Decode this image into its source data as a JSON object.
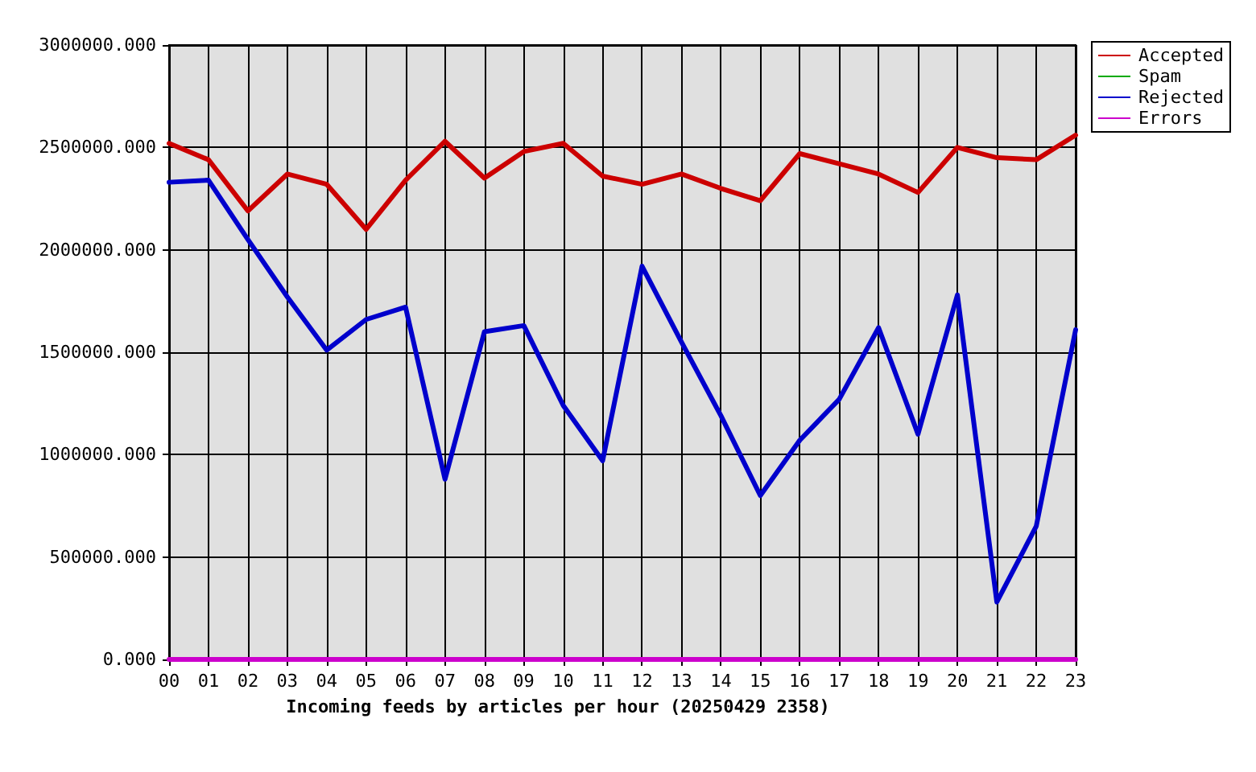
{
  "chart_data": {
    "type": "line",
    "xlabel": "Incoming feeds by articles per hour (20250429 2358)",
    "categories": [
      "00",
      "01",
      "02",
      "03",
      "04",
      "05",
      "06",
      "07",
      "08",
      "09",
      "10",
      "11",
      "12",
      "13",
      "14",
      "15",
      "16",
      "17",
      "18",
      "19",
      "20",
      "21",
      "22",
      "23"
    ],
    "series": [
      {
        "name": "Accepted",
        "color": "#cc0000",
        "values": [
          2520000,
          2440000,
          2190000,
          2370000,
          2320000,
          2100000,
          2340000,
          2530000,
          2350000,
          2480000,
          2520000,
          2360000,
          2320000,
          2370000,
          2300000,
          2240000,
          2470000,
          2420000,
          2370000,
          2280000,
          2500000,
          2450000,
          2440000,
          2560000
        ]
      },
      {
        "name": "Spam",
        "color": "#00aa00",
        "values": [
          null,
          null,
          null,
          null,
          null,
          null,
          null,
          null,
          null,
          null,
          null,
          null,
          null,
          null,
          null,
          null,
          null,
          null,
          null,
          null,
          null,
          null,
          null,
          null
        ]
      },
      {
        "name": "Rejected",
        "color": "#0000cc",
        "values": [
          2330000,
          2340000,
          2050000,
          1770000,
          1510000,
          1660000,
          1720000,
          880000,
          1600000,
          1630000,
          1240000,
          970000,
          1920000,
          1550000,
          1190000,
          800000,
          1070000,
          1270000,
          1620000,
          1100000,
          1780000,
          280000,
          650000,
          1610000
        ]
      },
      {
        "name": "Errors",
        "color": "#cc00cc",
        "values": [
          0,
          0,
          0,
          0,
          0,
          0,
          0,
          0,
          0,
          0,
          0,
          0,
          0,
          0,
          0,
          0,
          0,
          0,
          0,
          0,
          0,
          0,
          0,
          0
        ]
      }
    ],
    "ylim": [
      0,
      3000000
    ],
    "yticks": [
      {
        "value": 0,
        "label": "0.000"
      },
      {
        "value": 500000,
        "label": "500000.000"
      },
      {
        "value": 1000000,
        "label": "1000000.000"
      },
      {
        "value": 1500000,
        "label": "1500000.000"
      },
      {
        "value": 2000000,
        "label": "2000000.000"
      },
      {
        "value": 2500000,
        "label": "2500000.000"
      },
      {
        "value": 3000000,
        "label": "3000000.000"
      }
    ],
    "grid": true,
    "legend": "top right",
    "marker": "none"
  }
}
